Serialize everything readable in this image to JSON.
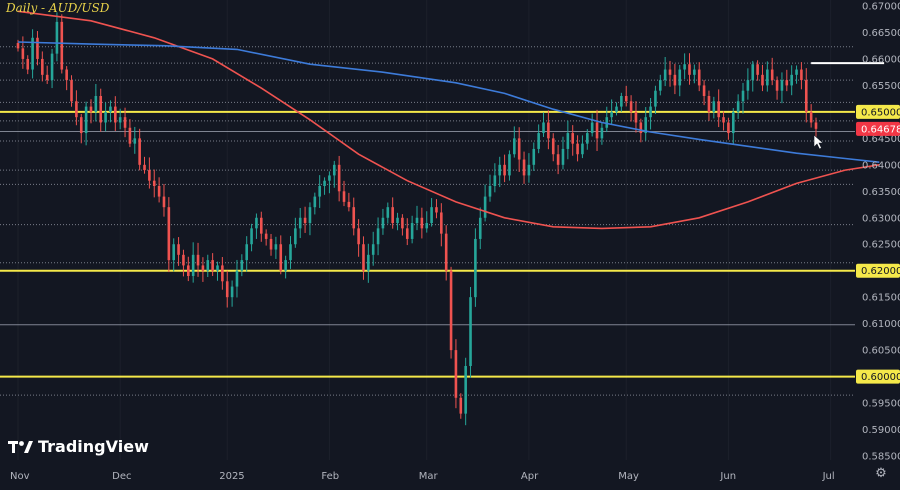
{
  "header": {
    "title": "Daily - AUD/USD"
  },
  "brand": {
    "name": "TradingView"
  },
  "chart_data": {
    "type": "candlestick",
    "title": "Daily - AUD/USD",
    "ylim": [
      0.585,
      0.67
    ],
    "y_ticks": [
      "0.67000",
      "0.66500",
      "0.66000",
      "0.65500",
      "0.65000",
      "0.64500",
      "0.64000",
      "0.63500",
      "0.63000",
      "0.62500",
      "0.62000",
      "0.61500",
      "0.61000",
      "0.60500",
      "0.60000",
      "0.59500",
      "0.59000",
      "0.58500"
    ],
    "x_ticks": [
      {
        "label": "Nov",
        "t": 0
      },
      {
        "label": "Dec",
        "t": 21
      },
      {
        "label": "2025",
        "t": 43
      },
      {
        "label": "Feb",
        "t": 64
      },
      {
        "label": "Mar",
        "t": 84
      },
      {
        "label": "Apr",
        "t": 105
      },
      {
        "label": "May",
        "t": 125
      },
      {
        "label": "Jun",
        "t": 146
      },
      {
        "label": "Jul",
        "t": 167
      }
    ],
    "price_badges": [
      {
        "label": "0.65000",
        "value": 0.65,
        "style": "yellow"
      },
      {
        "label": "0.64678",
        "value": 0.64678,
        "style": "red"
      },
      {
        "label": "0.62000",
        "value": 0.62,
        "style": "yellow"
      },
      {
        "label": "0.60000",
        "value": 0.6,
        "style": "yellow"
      }
    ],
    "key_levels_yellow": [
      0.65,
      0.62,
      0.6
    ],
    "resistance_segment": {
      "from_t": 163,
      "to_t": 178,
      "value": 0.6592
    },
    "dotted_levels": [
      0.6623,
      0.6592,
      0.656,
      0.6518,
      0.6483,
      0.6445,
      0.639,
      0.6363,
      0.6287,
      0.6215,
      0.5965
    ],
    "solid_levels": [
      0.6463,
      0.6098
    ],
    "series": [
      {
        "kind": "moving-average",
        "color": "#ef5350",
        "points": [
          [
            0,
            0.669
          ],
          [
            15,
            0.6672
          ],
          [
            28,
            0.664
          ],
          [
            40,
            0.66
          ],
          [
            50,
            0.6545
          ],
          [
            60,
            0.6485
          ],
          [
            70,
            0.642
          ],
          [
            80,
            0.637
          ],
          [
            90,
            0.633
          ],
          [
            100,
            0.63
          ],
          [
            110,
            0.6283
          ],
          [
            120,
            0.628
          ],
          [
            130,
            0.6283
          ],
          [
            140,
            0.63
          ],
          [
            150,
            0.633
          ],
          [
            160,
            0.6365
          ],
          [
            170,
            0.639
          ],
          [
            177,
            0.64
          ]
        ]
      },
      {
        "kind": "moving-average",
        "color": "#3d7bd9",
        "points": [
          [
            0,
            0.6632
          ],
          [
            15,
            0.6628
          ],
          [
            30,
            0.6625
          ],
          [
            45,
            0.6618
          ],
          [
            60,
            0.659
          ],
          [
            75,
            0.6575
          ],
          [
            90,
            0.6555
          ],
          [
            100,
            0.6535
          ],
          [
            110,
            0.6505
          ],
          [
            120,
            0.648
          ],
          [
            130,
            0.6462
          ],
          [
            140,
            0.6448
          ],
          [
            150,
            0.6435
          ],
          [
            160,
            0.6422
          ],
          [
            170,
            0.6412
          ],
          [
            177,
            0.6405
          ]
        ]
      }
    ],
    "closes": [
      0.662,
      0.66,
      0.658,
      0.664,
      0.66,
      0.657,
      0.656,
      0.661,
      0.667,
      0.658,
      0.656,
      0.652,
      0.649,
      0.646,
      0.651,
      0.65,
      0.653,
      0.648,
      0.65,
      0.651,
      0.648,
      0.649,
      0.647,
      0.644,
      0.645,
      0.64,
      0.639,
      0.637,
      0.636,
      0.634,
      0.632,
      0.622,
      0.625,
      0.623,
      0.621,
      0.619,
      0.623,
      0.621,
      0.62,
      0.622,
      0.62,
      0.621,
      0.618,
      0.615,
      0.617,
      0.62,
      0.622,
      0.625,
      0.628,
      0.63,
      0.627,
      0.626,
      0.624,
      0.625,
      0.62,
      0.622,
      0.625,
      0.628,
      0.63,
      0.629,
      0.632,
      0.634,
      0.636,
      0.637,
      0.638,
      0.64,
      0.635,
      0.633,
      0.632,
      0.628,
      0.625,
      0.62,
      0.623,
      0.625,
      0.628,
      0.63,
      0.632,
      0.629,
      0.63,
      0.628,
      0.626,
      0.629,
      0.63,
      0.628,
      0.629,
      0.632,
      0.631,
      0.627,
      0.62,
      0.605,
      0.596,
      0.593,
      0.602,
      0.615,
      0.626,
      0.63,
      0.634,
      0.636,
      0.638,
      0.64,
      0.638,
      0.642,
      0.645,
      0.641,
      0.638,
      0.64,
      0.643,
      0.646,
      0.648,
      0.645,
      0.642,
      0.64,
      0.643,
      0.646,
      0.644,
      0.642,
      0.644,
      0.646,
      0.648,
      0.645,
      0.647,
      0.649,
      0.65,
      0.651,
      0.653,
      0.652,
      0.65,
      0.648,
      0.646,
      0.649,
      0.651,
      0.654,
      0.656,
      0.658,
      0.657,
      0.655,
      0.658,
      0.659,
      0.657,
      0.658,
      0.655,
      0.653,
      0.65,
      0.652,
      0.649,
      0.648,
      0.646,
      0.65,
      0.652,
      0.654,
      0.656,
      0.659,
      0.657,
      0.655,
      0.658,
      0.656,
      0.654,
      0.656,
      0.655,
      0.657,
      0.658,
      0.656,
      0.65,
      0.648,
      0.6468
    ]
  }
}
